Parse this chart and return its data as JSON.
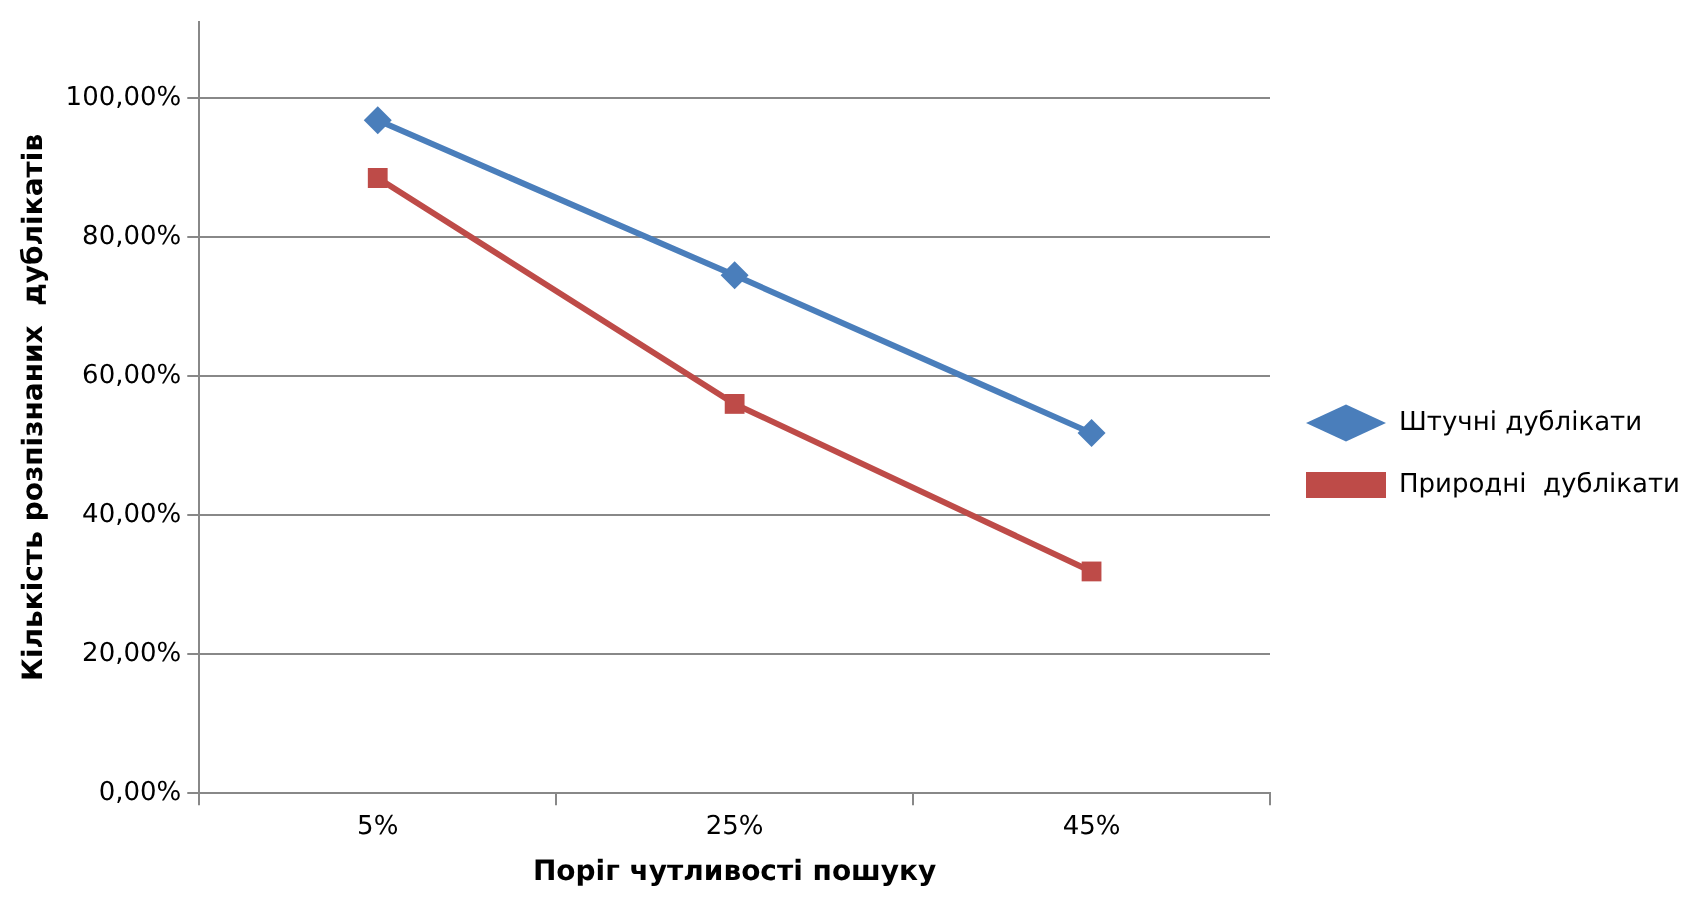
{
  "chart_data": {
    "type": "line",
    "xlabel": "Поріг чутливості пошуку",
    "ylabel": "Кількість розпізнаних  дублікатів",
    "categories": [
      "5%",
      "25%",
      "45%"
    ],
    "series": [
      {
        "name": "Штучні дублікати",
        "color": "#4a7ebb",
        "marker": "diamond",
        "values": [
          96.8,
          74.5,
          51.8
        ]
      },
      {
        "name": "Природні  дублікати",
        "color": "#be4b48",
        "marker": "square",
        "values": [
          88.5,
          56.0,
          31.9
        ]
      }
    ],
    "ylim": [
      0,
      111
    ],
    "yticks": [
      {
        "value": 0,
        "label": "0,00%"
      },
      {
        "value": 20,
        "label": "20,00%"
      },
      {
        "value": 40,
        "label": "40,00%"
      },
      {
        "value": 60,
        "label": "60,00%"
      },
      {
        "value": 80,
        "label": "80,00%"
      },
      {
        "value": 100,
        "label": "100,00%"
      }
    ],
    "grid": "y",
    "legend": "right",
    "line_style": "solid"
  }
}
